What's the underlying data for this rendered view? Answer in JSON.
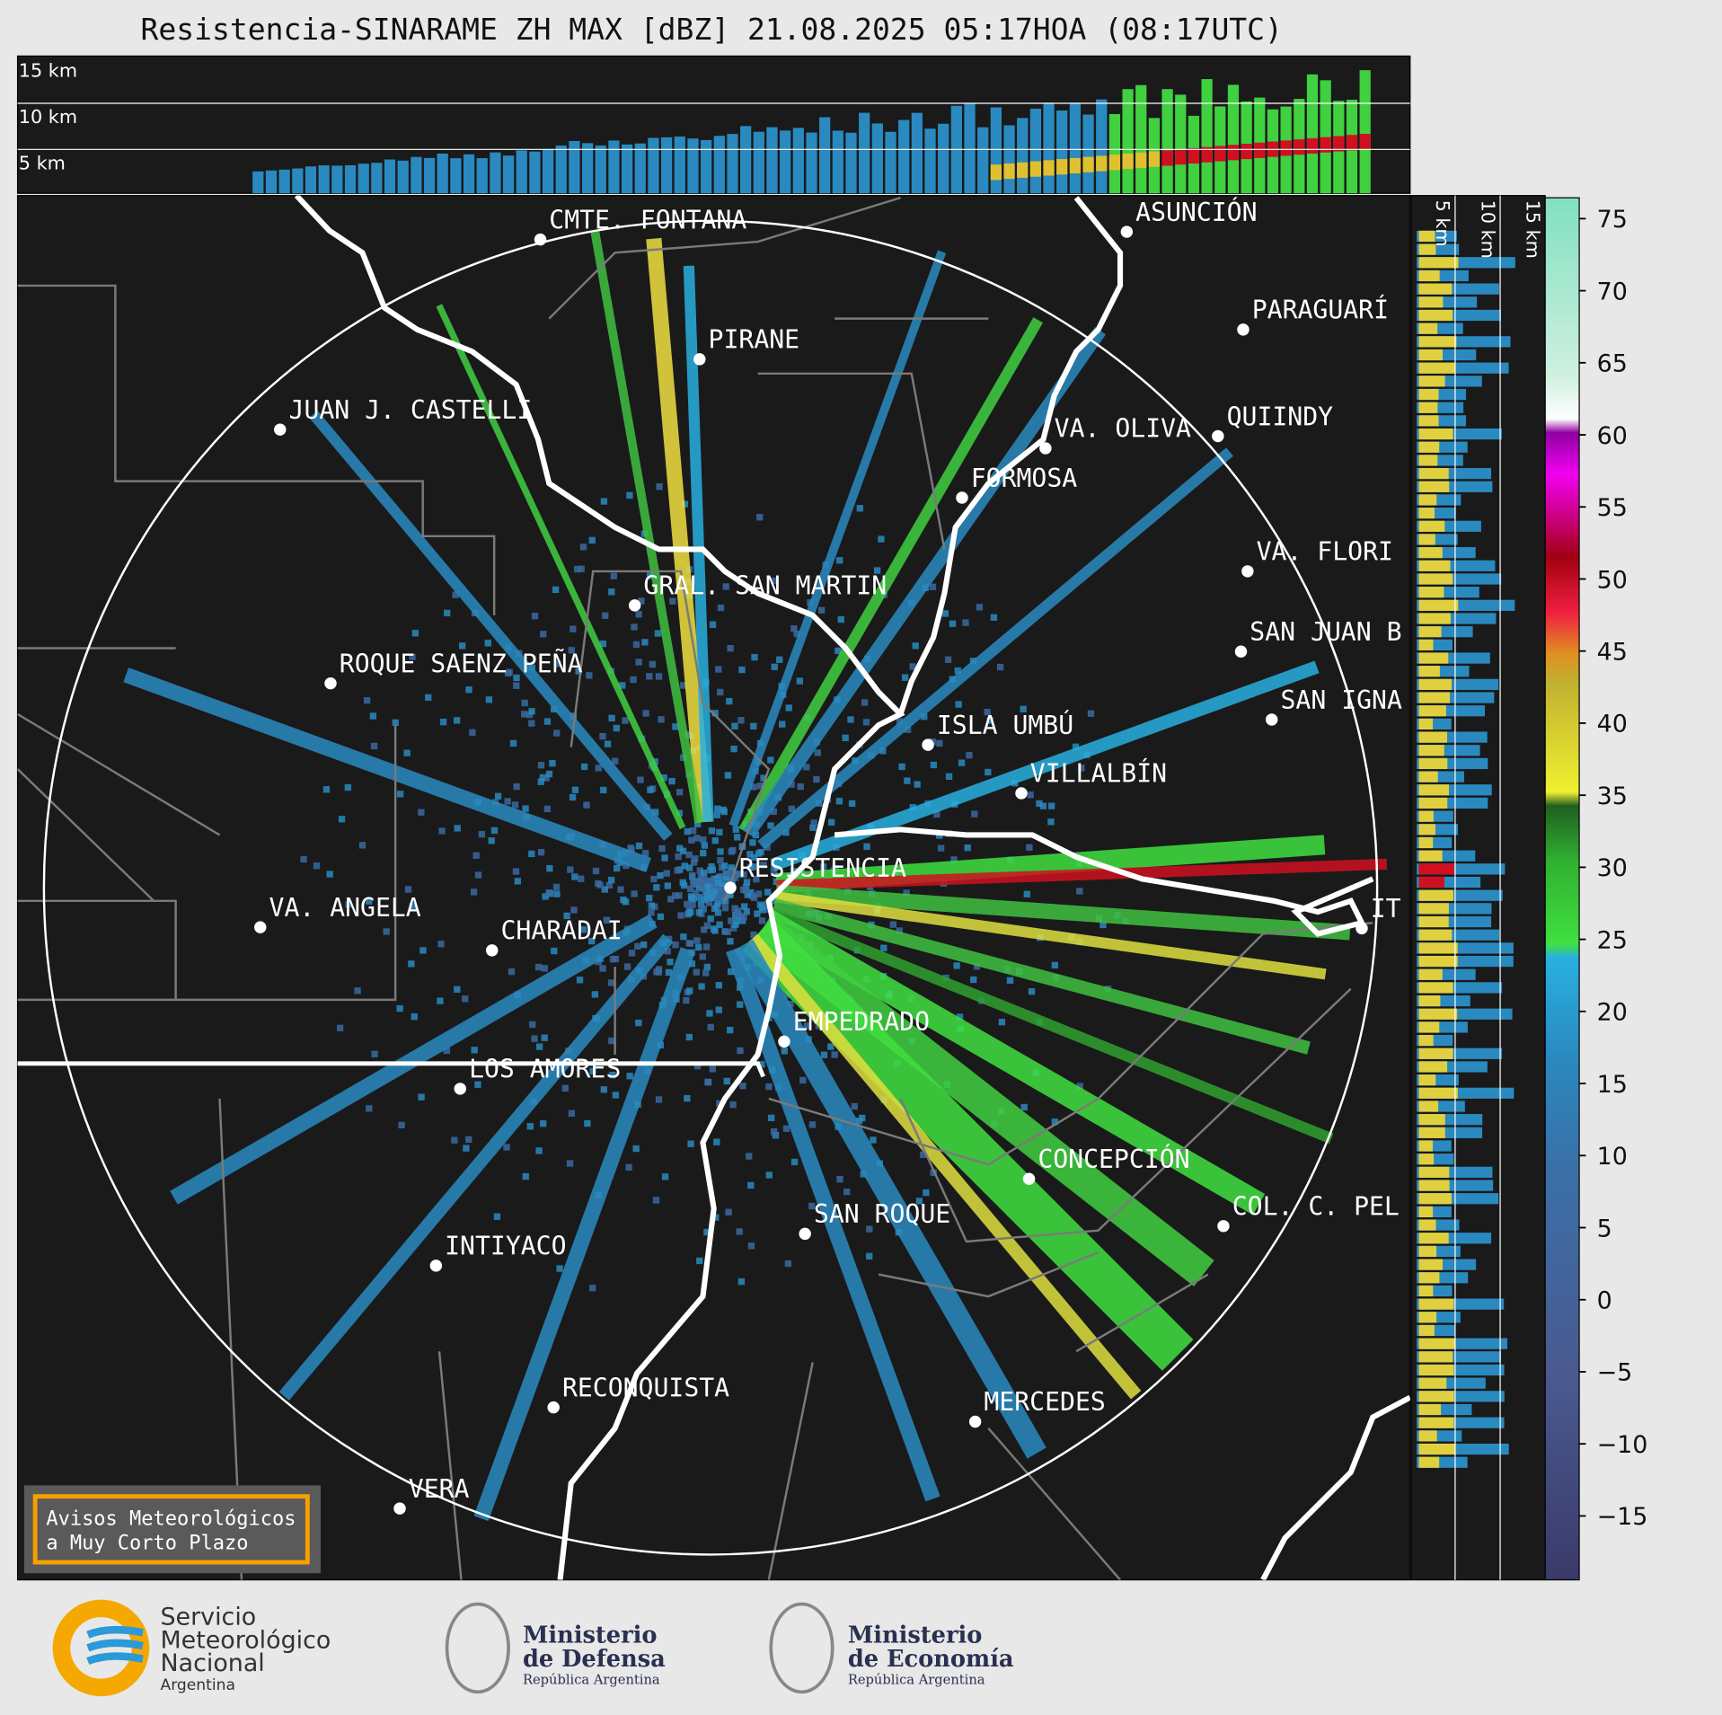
{
  "header": {
    "title": "Resistencia-SINARAME ZH MAX [dBZ] 21.08.2025 05:17HOA (08:17UTC)"
  },
  "top_panel": {
    "height_labels": [
      "15 km",
      "10 km",
      "5 km"
    ]
  },
  "right_panel": {
    "height_labels": [
      "5 km",
      "10 km",
      "15 km"
    ]
  },
  "cities": [
    "CMTE. FONTANA",
    "PIRANE",
    "JUAN J. CASTELLI",
    "VA. OLIVA",
    "QUIINDY",
    "FORMOSA",
    "ASUNCIÓN",
    "PARAGUARÍ",
    "VA. FLORI",
    "GRAL. SAN MARTIN",
    "ROQUE SAENZ PEÑA",
    "SAN JUAN B",
    "SAN IGNA",
    "ISLA UMBÚ",
    "VILLALBÍN",
    "RESISTENCIA",
    "VA. ANGELA",
    "CHARADAI",
    "IT",
    "EMPEDRADO",
    "LOS AMORES",
    "CONCEPCIÓN",
    "COL. C. PEL",
    "SAN ROQUE",
    "INTIYACO",
    "RECONQUISTA",
    "MERCEDES",
    "VERA"
  ],
  "colorbar": {
    "ticks": [
      75,
      70,
      65,
      60,
      55,
      50,
      45,
      40,
      35,
      30,
      25,
      20,
      15,
      10,
      5,
      0,
      {
        "value": -5,
        "label": "−5"
      },
      {
        "value": -10,
        "label": "−10"
      },
      {
        "value": -15,
        "label": "−15"
      }
    ]
  },
  "warning_box": {
    "lines": [
      "Avisos Meteorológicos",
      "a Muy Corto Plazo"
    ]
  },
  "logos": {
    "smn": [
      "Servicio",
      "Meteorológico",
      "Nacional",
      "Argentina"
    ],
    "defensa": [
      "Ministerio",
      "de Defensa",
      "República Argentina"
    ],
    "economia": [
      "Ministerio",
      "de Economía",
      "República Argentina"
    ]
  }
}
